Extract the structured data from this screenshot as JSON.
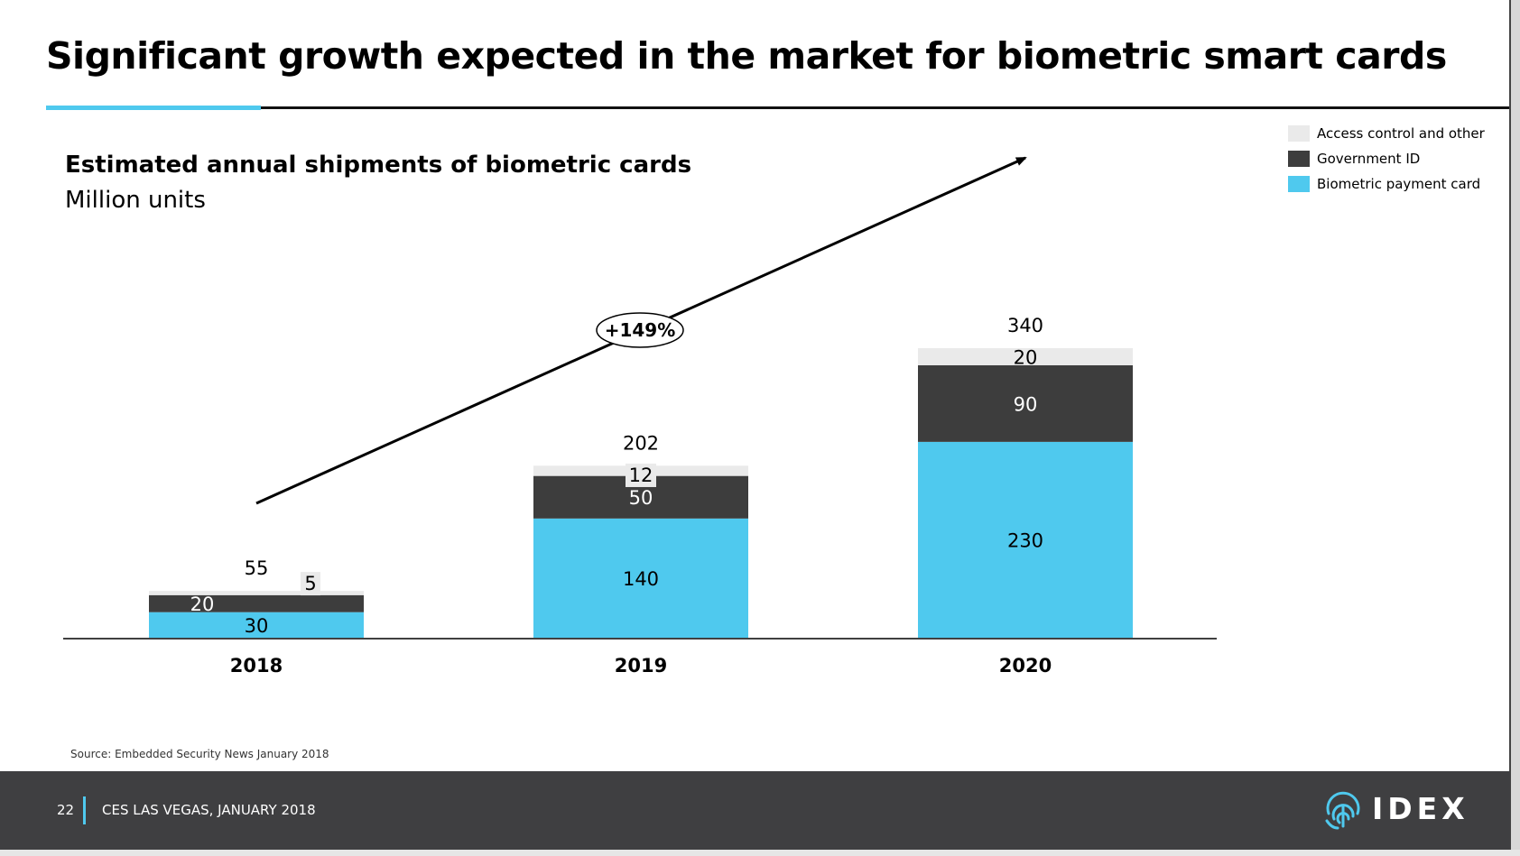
{
  "slide": {
    "title": "Significant growth expected in the market for biometric smart cards",
    "source": "Source: Embedded Security News January 2018"
  },
  "footer": {
    "page_number": "22",
    "event": "CES LAS VEGAS, JANUARY 2018",
    "logo_text": "IDEX"
  },
  "colors": {
    "accent": "#4fc9ee",
    "access_control": "#eaeaea",
    "government_id": "#3d3d3d",
    "payment_card": "#4fc9ee",
    "footer_bg": "#3f3f41"
  },
  "chart_data": {
    "type": "bar",
    "stacked": true,
    "title": "Estimated annual shipments of biometric cards",
    "subtitle": "Million units",
    "categories": [
      "2018",
      "2019",
      "2020"
    ],
    "series": [
      {
        "name": "Biometric payment card",
        "values": [
          30,
          140,
          230
        ],
        "color": "#4fc9ee"
      },
      {
        "name": "Government ID",
        "values": [
          20,
          50,
          90
        ],
        "color": "#3d3d3d"
      },
      {
        "name": "Access control and other",
        "values": [
          5,
          12,
          20
        ],
        "color": "#eaeaea"
      }
    ],
    "totals": [
      "55",
      "202",
      "340"
    ],
    "legend_order": [
      "Access control and other",
      "Government ID",
      "Biometric payment card"
    ],
    "legend_position": "top-right",
    "growth_annotation": "+149%",
    "ylim": [
      0,
      340
    ],
    "grid": false
  }
}
